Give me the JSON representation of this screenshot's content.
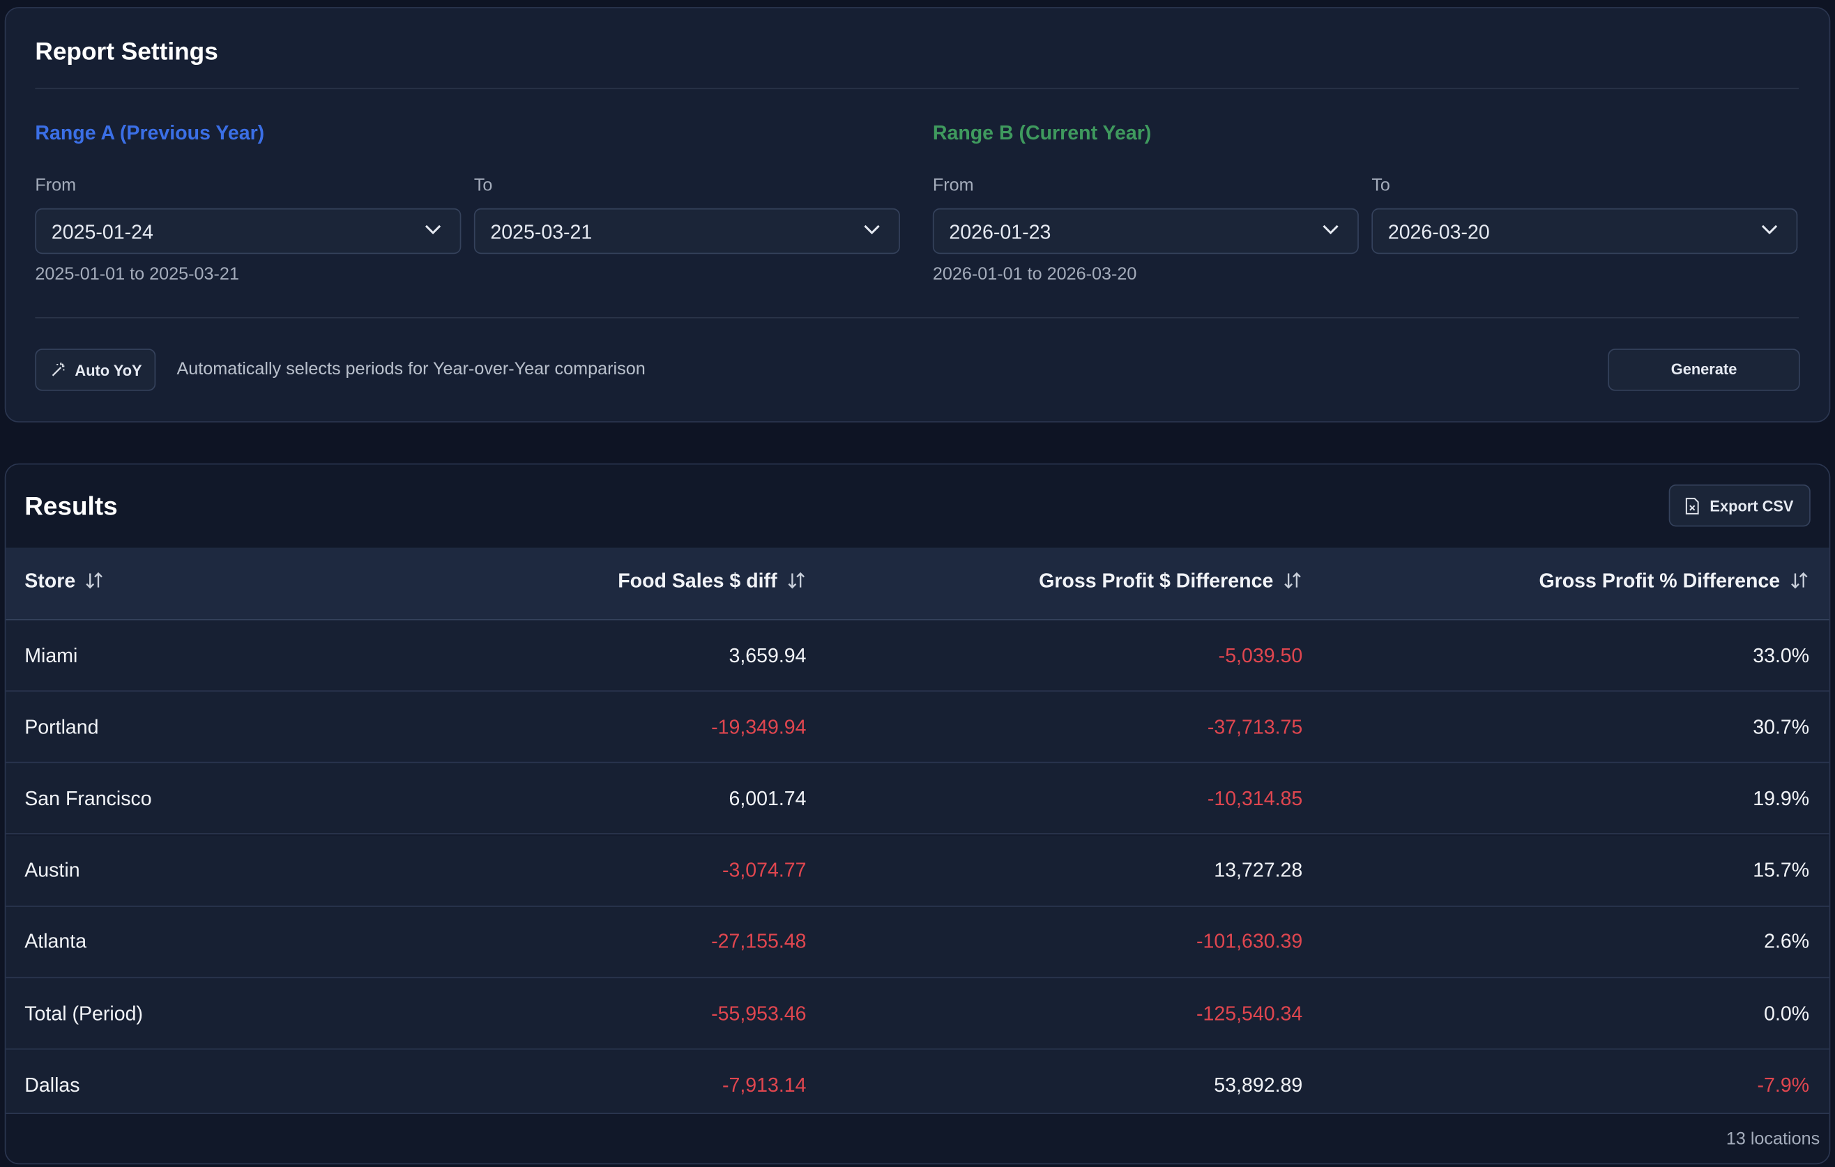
{
  "settings": {
    "title": "Report Settings",
    "range_a": {
      "title": "Range A (Previous Year)",
      "from_label": "From",
      "from_value": "2025-01-24",
      "to_label": "To",
      "to_value": "2025-03-21",
      "hint": "2025-01-01 to 2025-03-21"
    },
    "range_b": {
      "title": "Range B (Current Year)",
      "from_label": "From",
      "from_value": "2026-01-23",
      "to_label": "To",
      "to_value": "2026-03-20",
      "hint": "2026-01-01 to 2026-03-20"
    },
    "auto_button": "Auto YoY",
    "auto_description": "Automatically selects periods for Year-over-Year comparison",
    "generate_button": "Generate"
  },
  "results": {
    "title": "Results",
    "export_button": "Export CSV",
    "table": {
      "columns": [
        "Store",
        "Food Sales $ diff",
        "Gross Profit $ Difference",
        "Gross Profit % Difference"
      ],
      "rows": [
        [
          "Miami",
          "3,659.94",
          "-5,039.50",
          "33.0%"
        ],
        [
          "Portland",
          "-19,349.94",
          "-37,713.75",
          "30.7%"
        ],
        [
          "San Francisco",
          "6,001.74",
          "-10,314.85",
          "19.9%"
        ],
        [
          "Austin",
          "-3,074.77",
          "13,727.28",
          "15.7%"
        ],
        [
          "Atlanta",
          "-27,155.48",
          "-101,630.39",
          "2.6%"
        ],
        [
          "Total (Period)",
          "-55,953.46",
          "-125,540.34",
          "0.0%"
        ],
        [
          "Dallas",
          "-7,913.14",
          "53,892.89",
          "-7.9%"
        ]
      ]
    },
    "footer": "13 locations"
  }
}
